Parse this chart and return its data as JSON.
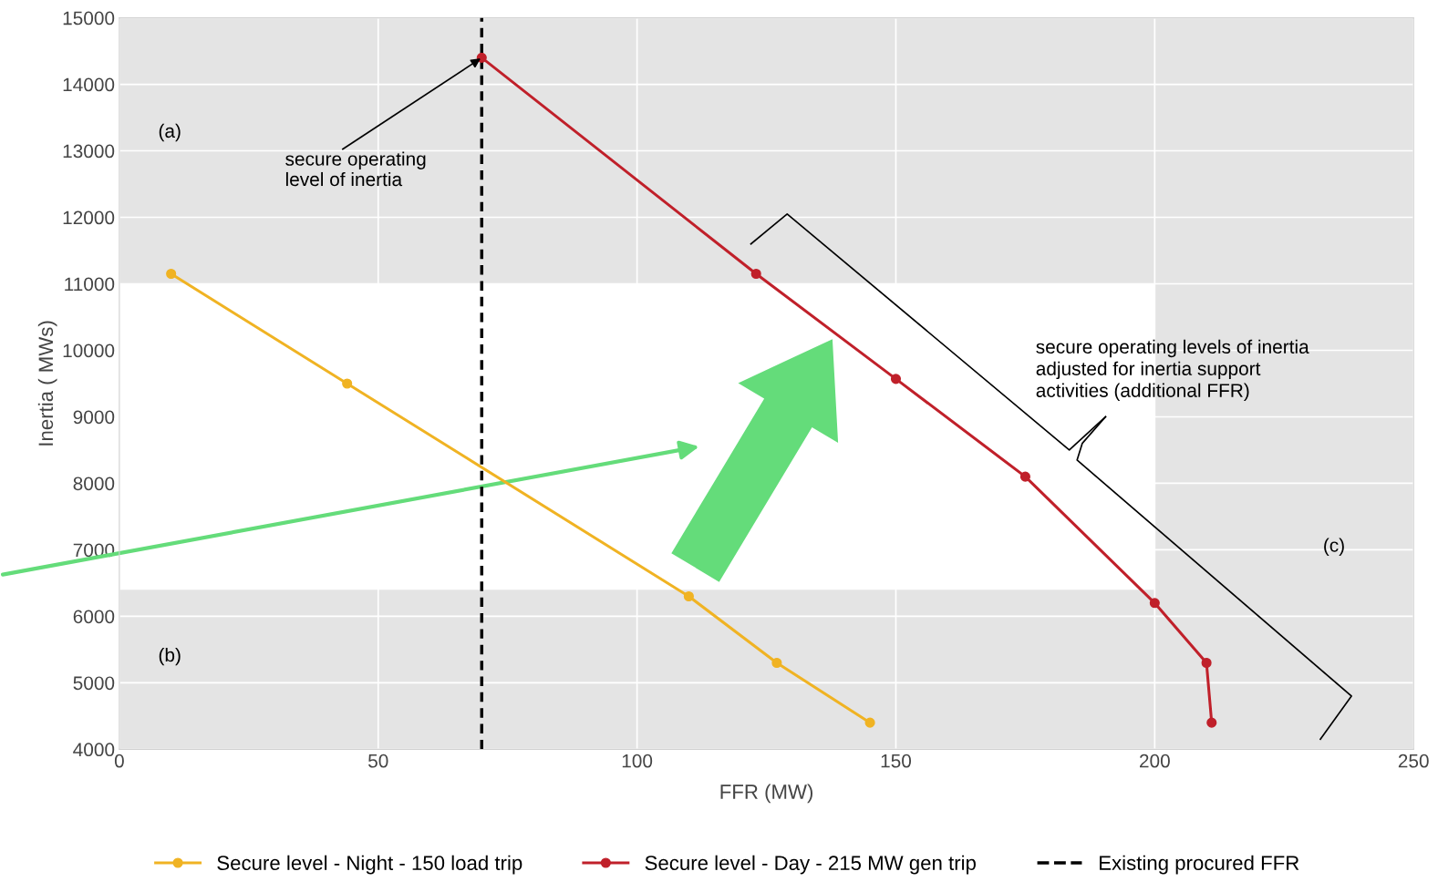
{
  "chart_data": {
    "type": "line",
    "xlabel": "FFR (MW)",
    "ylabel": "Inertia ( MWs)",
    "series": [
      {
        "name": "Secure level - Night - 150 load trip",
        "color": "#f0b323",
        "x": [
          10,
          44,
          110,
          127,
          145
        ],
        "values": [
          11150,
          9500,
          6300,
          5300,
          4400
        ]
      },
      {
        "name": "Secure level - Day - 215 MW gen trip",
        "color": "#c0202a",
        "x": [
          70,
          123,
          150,
          175,
          200,
          210,
          211
        ],
        "values": [
          14400,
          11150,
          9570,
          8100,
          6200,
          5300,
          4400
        ]
      }
    ],
    "xlim": [
      0,
      250
    ],
    "xticks": [
      0,
      50,
      100,
      150,
      200,
      250
    ],
    "ylim": [
      4000,
      15000
    ],
    "yticks": [
      4000,
      5000,
      6000,
      7000,
      8000,
      9000,
      10000,
      11000,
      12000,
      13000,
      14000,
      15000
    ],
    "ref_lines": [
      {
        "axis": "x",
        "value": 70,
        "label": "Existing procured FFR",
        "color": "#000000",
        "line_style": "dashed"
      }
    ],
    "bands": [
      {
        "axis": "y",
        "from": 11000,
        "to": 15000,
        "label": "(a)",
        "color": "#e4e4e4"
      },
      {
        "axis": "y",
        "from": 4000,
        "to": 6400,
        "label": "(b)",
        "color": "#e4e4e4"
      },
      {
        "axis": "x",
        "from": 200,
        "to": 250,
        "label": "(c)",
        "color": "#e4e4e4"
      }
    ],
    "annotations": [
      {
        "text": "secure operating\nlevel of inertia",
        "x": 70,
        "y": 14400
      },
      "secure operating levels of inertia\nadjusted for inertia support\nactivities (additional FFR)"
    ],
    "grid": true,
    "legend": "bottom",
    "marker": "circle",
    "line_style": "solid"
  }
}
